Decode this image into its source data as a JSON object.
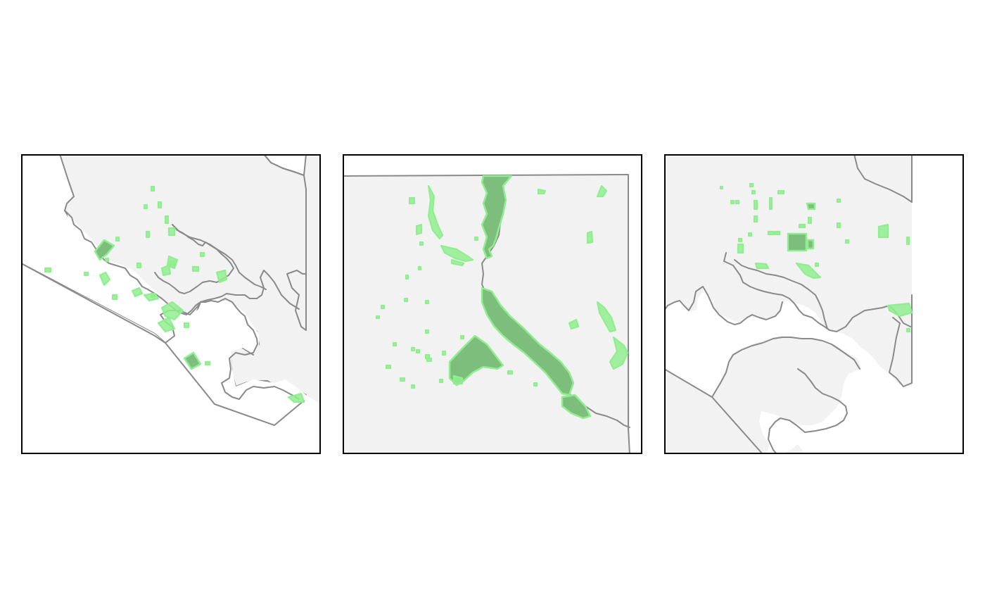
{
  "colors": {
    "land_fill": "#f2f2f2",
    "boundary": "#8a8a8a",
    "frame": "#000000",
    "park_outline": "#90ee90",
    "park_fill_large": "#7dbe7d",
    "background": "#ffffff"
  },
  "maps": [
    {
      "id": "left-map",
      "extent": "regional"
    },
    {
      "id": "center-map",
      "extent": "zoomed"
    },
    {
      "id": "right-map",
      "extent": "regional"
    }
  ]
}
